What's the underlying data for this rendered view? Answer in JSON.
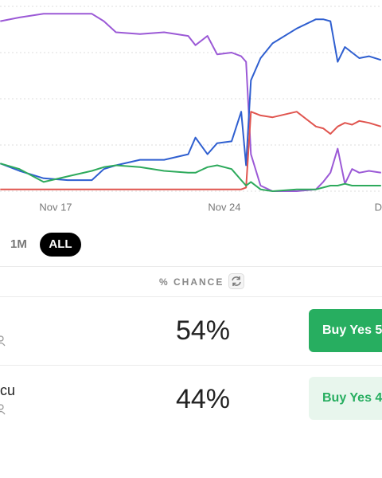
{
  "chart_data": {
    "type": "line",
    "x": [
      14.7,
      15.5,
      16.5,
      17.5,
      18.5,
      19,
      19.5,
      20.5,
      21.5,
      22.5,
      22.8,
      23.3,
      23.7,
      24.3,
      24.7,
      24.9,
      25.1,
      25.5,
      26,
      27,
      27.8,
      28.1,
      28.4,
      28.7,
      29,
      29.3,
      29.6,
      30,
      30.5
    ],
    "series": [
      {
        "color": "#9b59d6",
        "values": [
          92,
          94,
          96,
          96,
          96,
          92,
          86,
          85,
          86,
          84,
          79,
          84,
          74,
          75,
          73,
          70,
          20,
          3,
          0,
          0,
          1,
          5,
          10,
          23,
          4,
          12,
          10,
          11,
          10
        ]
      },
      {
        "color": "#2f5fd0",
        "values": [
          15,
          11,
          7,
          6,
          6,
          12,
          14,
          17,
          17,
          20,
          29,
          20,
          26,
          27,
          43,
          14,
          60,
          72,
          80,
          88,
          93,
          93,
          92,
          70,
          78,
          75,
          72,
          73,
          71
        ]
      },
      {
        "color": "#e0554f",
        "values": [
          1,
          1,
          1,
          1,
          1,
          1,
          1,
          1,
          1,
          1,
          1,
          1,
          1,
          1,
          1,
          2,
          43,
          41,
          40,
          43,
          35,
          34,
          31,
          35,
          37,
          36,
          38,
          37,
          35
        ]
      },
      {
        "color": "#2eaa5c",
        "values": [
          15,
          12,
          5,
          8,
          11,
          13,
          14,
          13,
          11,
          10,
          10,
          13,
          14,
          12,
          6,
          3,
          5,
          1,
          0,
          1,
          1,
          2,
          3,
          3,
          4,
          3,
          3,
          3,
          3
        ]
      }
    ],
    "xlim": [
      14.69,
      30.54
    ],
    "xticks": [
      {
        "value": 17,
        "label": "Nov 17"
      },
      {
        "value": 24,
        "label": "Nov 24"
      },
      {
        "value": 31,
        "label": "D"
      }
    ],
    "ylim": [
      0,
      100
    ],
    "yticks": [
      0,
      25,
      50,
      75,
      100
    ],
    "grid": true
  },
  "ranges": [
    "1M",
    "ALL"
  ],
  "header": "% CHANCE",
  "outcomes": [
    {
      "name": "",
      "chance": "54%",
      "button": "Buy Yes 5"
    },
    {
      "name": "cu",
      "chance": "44%",
      "button": "Buy Yes 4"
    }
  ]
}
